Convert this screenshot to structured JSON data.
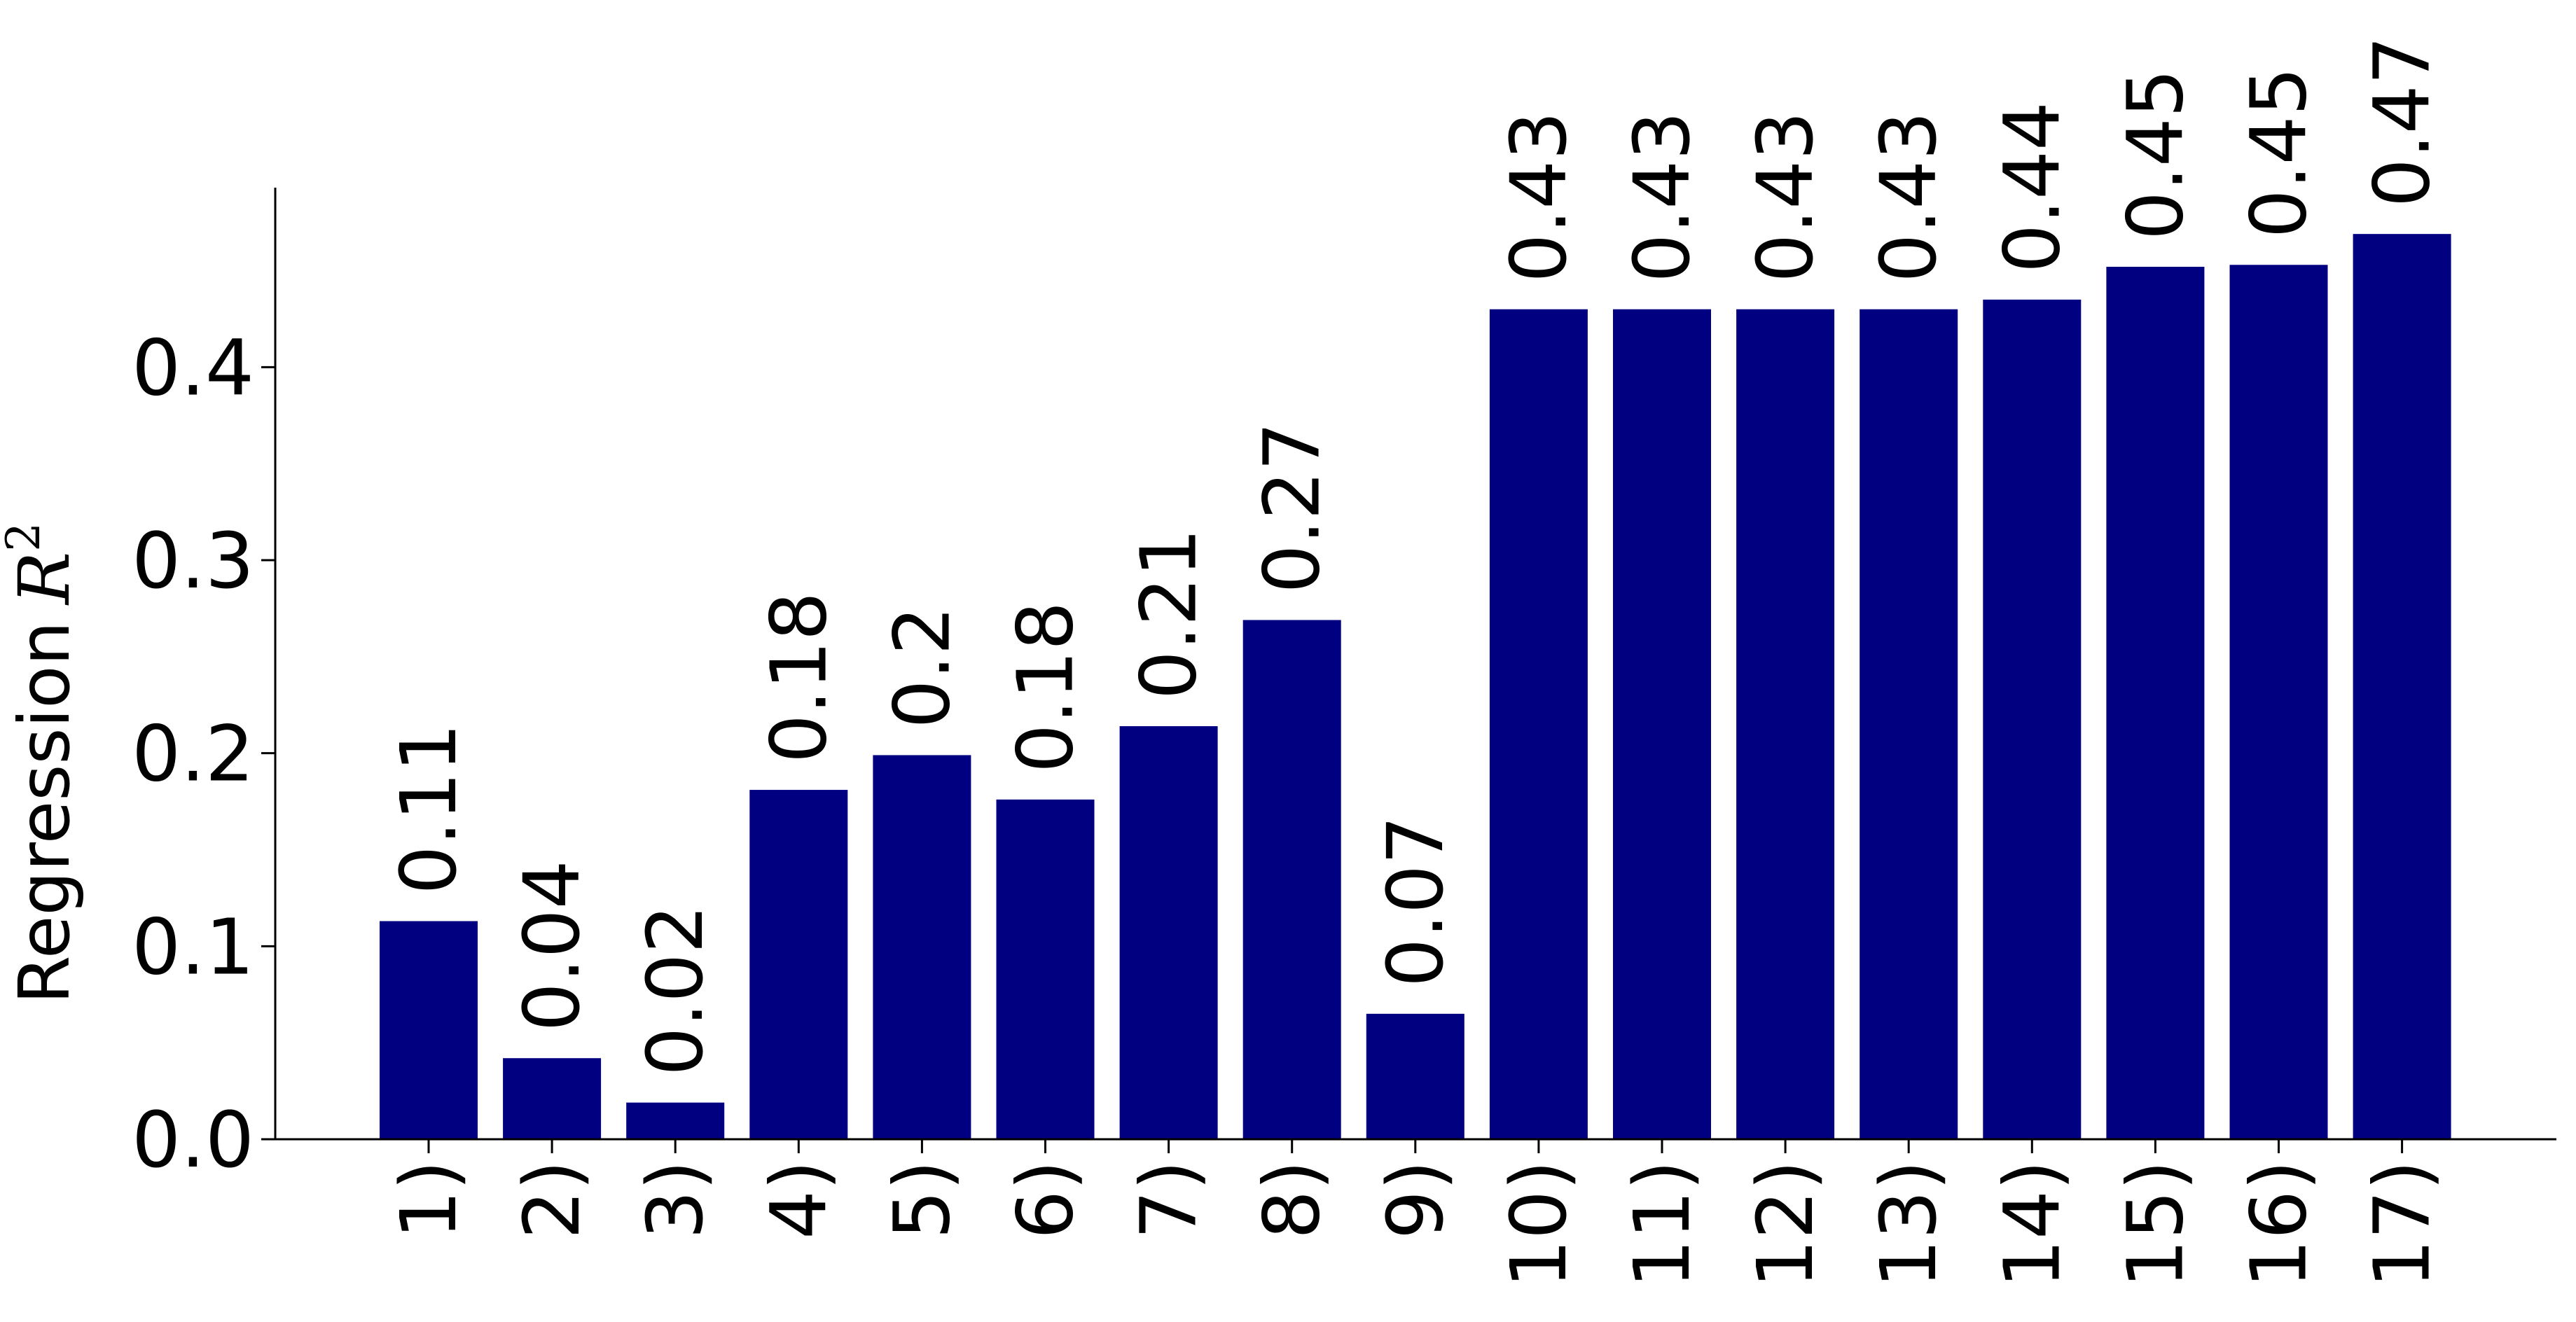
{
  "chart_data": {
    "type": "bar",
    "categories": [
      "1)",
      "2)",
      "3)",
      "4)",
      "5)",
      "6)",
      "7)",
      "8)",
      "9)",
      "10)",
      "11)",
      "12)",
      "13)",
      "14)",
      "15)",
      "16)",
      "17)"
    ],
    "values": [
      0.113,
      0.042,
      0.019,
      0.181,
      0.199,
      0.176,
      0.214,
      0.269,
      0.065,
      0.43,
      0.43,
      0.43,
      0.43,
      0.435,
      0.452,
      0.453,
      0.469
    ],
    "value_labels": [
      "0.11",
      "0.04",
      "0.02",
      "0.18",
      "0.2",
      "0.18",
      "0.21",
      "0.27",
      "0.07",
      "0.43",
      "0.43",
      "0.43",
      "0.43",
      "0.44",
      "0.45",
      "0.45",
      "0.47"
    ],
    "title": "",
    "xlabel": "",
    "ylabel": "Regression",
    "ylabel_math": "R",
    "ylabel_exponent": "2",
    "ylim": [
      0,
      0.493
    ],
    "yticks": [
      0.0,
      0.1,
      0.2,
      0.3,
      0.4
    ],
    "ytick_labels": [
      "0.0",
      "0.1",
      "0.2",
      "0.3",
      "0.4"
    ],
    "bar_color": "#000080",
    "grid": false,
    "legend": "none"
  }
}
